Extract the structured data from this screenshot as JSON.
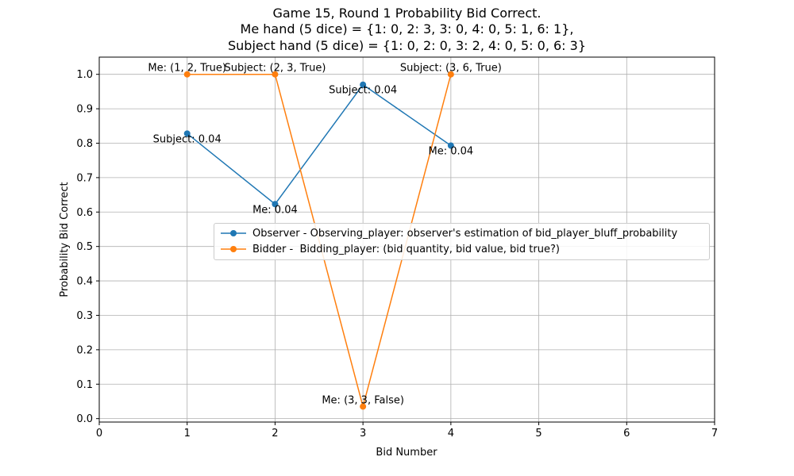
{
  "chart_data": {
    "type": "line",
    "title_lines": [
      "Game 15, Round 1 Probability Bid Correct.",
      "Me hand (5 dice) = {1: 0, 2: 3, 3: 0, 4: 0, 5: 1, 6: 1},",
      "Subject hand (5 dice) = {1: 0, 2: 0, 3: 2, 4: 0, 5: 0, 6: 3}"
    ],
    "xlabel": "Bid Number",
    "ylabel": "Probability Bid Correct",
    "xlim": [
      0,
      7
    ],
    "ylim": [
      -0.01,
      1.05
    ],
    "xticks": [
      0,
      1,
      2,
      3,
      4,
      5,
      6,
      7
    ],
    "yticks": [
      0.0,
      0.1,
      0.2,
      0.3,
      0.4,
      0.5,
      0.6,
      0.7,
      0.8,
      0.9,
      1.0
    ],
    "ytick_labels": [
      "0.0",
      "0.1",
      "0.2",
      "0.3",
      "0.4",
      "0.5",
      "0.6",
      "0.7",
      "0.8",
      "0.9",
      "1.0"
    ],
    "grid": true,
    "legend_position": "center-right",
    "series": [
      {
        "name": "Observer - Observing_player: observer's estimation of bid_player_bluff_probability",
        "color": "#1f77b4",
        "x": [
          1,
          2,
          3,
          4
        ],
        "y": [
          0.828,
          0.623,
          0.97,
          0.793
        ],
        "annotations": [
          "Subject: 0.04",
          "Me: 0.04",
          "Subject: 0.04",
          "Me: 0.04"
        ]
      },
      {
        "name": "Bidder -  Bidding_player: (bid quantity, bid value, bid true?)",
        "color": "#ff7f0e",
        "x": [
          1,
          2,
          3,
          4
        ],
        "y": [
          1.0,
          1.0,
          0.035,
          1.0
        ],
        "annotations": [
          "Me: (1, 2, True)",
          "Subject: (2, 3, True)",
          "Me: (3, 3, False)",
          "Subject: (3, 6, True)"
        ]
      }
    ]
  }
}
